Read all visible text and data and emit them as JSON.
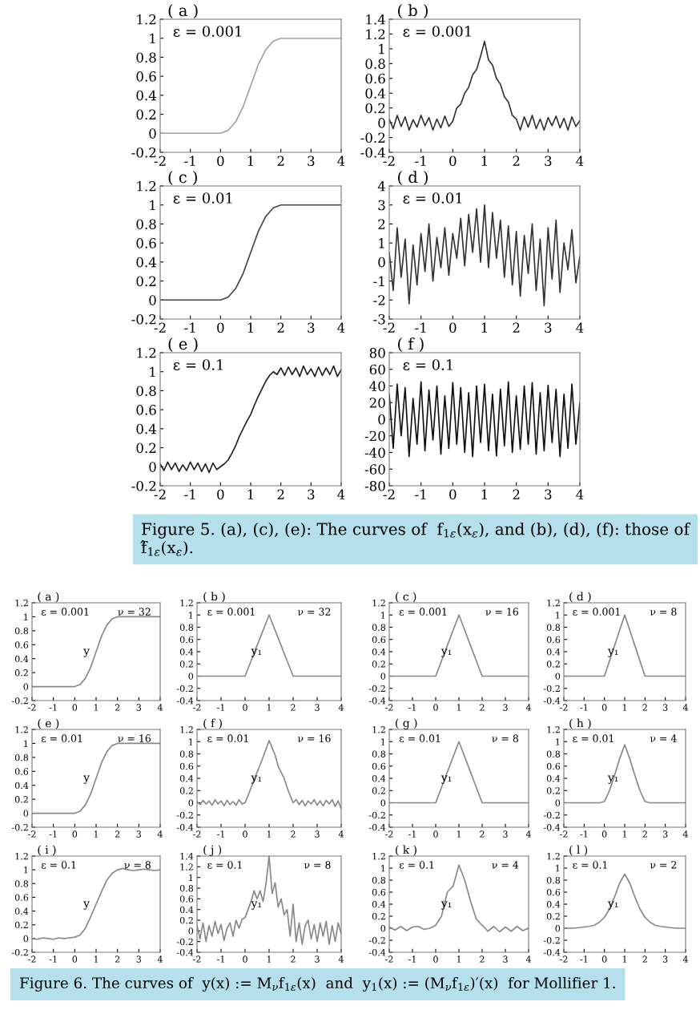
{
  "chart_data": [
    {
      "type": "line",
      "title": "( a )",
      "annotations": [
        "ε = 0.001"
      ],
      "color": "#a0a0a0",
      "x": [
        -2,
        -1.75,
        -1.5,
        -1.25,
        -1,
        -0.75,
        -0.5,
        -0.25,
        0,
        0.25,
        0.5,
        0.75,
        1,
        1.25,
        1.5,
        1.75,
        2,
        2.25,
        2.5,
        2.75,
        3,
        3.25,
        3.5,
        3.75,
        4
      ],
      "values": [
        0,
        0,
        0,
        0,
        0,
        0,
        0,
        0,
        0,
        0.03,
        0.12,
        0.28,
        0.5,
        0.72,
        0.88,
        0.97,
        1,
        1,
        1,
        1,
        1,
        1,
        1,
        1,
        1
      ],
      "xlim": [
        -2,
        4
      ],
      "xticks": [
        -2,
        -1,
        0,
        1,
        2,
        3,
        4
      ],
      "ylim": [
        -0.2,
        1.2
      ],
      "yticks": [
        -0.2,
        0,
        0.2,
        0.4,
        0.6,
        0.8,
        1,
        1.2
      ]
    },
    {
      "type": "line",
      "title": "( b )",
      "annotations": [
        "ε = 0.001"
      ],
      "color": "#333333",
      "x": [
        -2,
        -1.875,
        -1.75,
        -1.625,
        -1.5,
        -1.375,
        -1.25,
        -1.125,
        -1,
        -0.875,
        -0.75,
        -0.625,
        -0.5,
        -0.375,
        -0.25,
        -0.125,
        0,
        0.125,
        0.25,
        0.375,
        0.5,
        0.625,
        0.75,
        0.875,
        1,
        1.125,
        1.25,
        1.375,
        1.5,
        1.625,
        1.75,
        1.875,
        2,
        2.125,
        2.25,
        2.375,
        2.5,
        2.625,
        2.75,
        2.875,
        3,
        3.125,
        3.25,
        3.375,
        3.5,
        3.625,
        3.75,
        3.875,
        4
      ],
      "values": [
        0.05,
        -0.08,
        0.1,
        -0.05,
        0.08,
        -0.1,
        0.04,
        -0.06,
        0.1,
        -0.04,
        0.07,
        -0.1,
        0.05,
        -0.07,
        0.09,
        -0.05,
        0.02,
        0.2,
        0.25,
        0.4,
        0.48,
        0.65,
        0.72,
        0.9,
        1.1,
        0.85,
        0.78,
        0.6,
        0.52,
        0.35,
        0.28,
        0.1,
        0.05,
        -0.1,
        0.08,
        -0.06,
        0.1,
        -0.08,
        0.05,
        -0.1,
        0.07,
        -0.04,
        0.09,
        -0.07,
        0.06,
        -0.1,
        0.08,
        -0.05,
        0.03
      ],
      "xlim": [
        -2,
        4
      ],
      "xticks": [
        -2,
        -1,
        0,
        1,
        2,
        3,
        4
      ],
      "ylim": [
        -0.4,
        1.4
      ],
      "yticks": [
        -0.4,
        -0.2,
        0,
        0.2,
        0.4,
        0.6,
        0.8,
        1,
        1.2,
        1.4
      ]
    },
    {
      "type": "line",
      "title": "( c )",
      "annotations": [
        "ε = 0.01"
      ],
      "color": "#444444",
      "x": [
        -2,
        -1.75,
        -1.5,
        -1.25,
        -1,
        -0.75,
        -0.5,
        -0.25,
        0,
        0.25,
        0.5,
        0.75,
        1,
        1.25,
        1.5,
        1.75,
        2,
        2.25,
        2.5,
        2.75,
        3,
        3.25,
        3.5,
        3.75,
        4
      ],
      "values": [
        0,
        0,
        0,
        0,
        0,
        0,
        0,
        0,
        0,
        0.03,
        0.12,
        0.28,
        0.5,
        0.72,
        0.88,
        0.97,
        1,
        1,
        1,
        1,
        1,
        1,
        1,
        1,
        1
      ],
      "xlim": [
        -2,
        4
      ],
      "xticks": [
        -2,
        -1,
        0,
        1,
        2,
        3,
        4
      ],
      "ylim": [
        -0.2,
        1.2
      ],
      "yticks": [
        -0.2,
        0,
        0.2,
        0.4,
        0.6,
        0.8,
        1,
        1.2
      ]
    },
    {
      "type": "line",
      "title": "( d )",
      "annotations": [
        "ε = 0.01"
      ],
      "color": "#333333",
      "x": [
        -2,
        -1.875,
        -1.75,
        -1.625,
        -1.5,
        -1.375,
        -1.25,
        -1.125,
        -1,
        -0.875,
        -0.75,
        -0.625,
        -0.5,
        -0.375,
        -0.25,
        -0.125,
        0,
        0.125,
        0.25,
        0.375,
        0.5,
        0.625,
        0.75,
        0.875,
        1,
        1.125,
        1.25,
        1.375,
        1.5,
        1.625,
        1.75,
        1.875,
        2,
        2.125,
        2.25,
        2.375,
        2.5,
        2.625,
        2.75,
        2.875,
        3,
        3.125,
        3.25,
        3.375,
        3.5,
        3.625,
        3.75,
        3.875,
        4
      ],
      "values": [
        0.5,
        -1.5,
        1.8,
        -0.8,
        1.2,
        -2.2,
        0.9,
        -1.2,
        1.5,
        -0.5,
        2.0,
        -1.0,
        1.3,
        -0.3,
        1.8,
        -0.7,
        1.5,
        0.2,
        2.3,
        -0.2,
        2.5,
        0.5,
        2.8,
        0.0,
        3.0,
        -0.3,
        2.6,
        0.2,
        2.2,
        -0.8,
        1.9,
        -1.2,
        1.6,
        -1.8,
        1.4,
        -0.6,
        2.0,
        -1.5,
        1.2,
        -2.3,
        1.8,
        -0.9,
        2.2,
        -1.6,
        1.0,
        -0.4,
        1.7,
        -1.1,
        0.3
      ],
      "xlim": [
        -2,
        4
      ],
      "xticks": [
        -2,
        -1,
        0,
        1,
        2,
        3,
        4
      ],
      "ylim": [
        -3,
        4
      ],
      "yticks": [
        -3,
        -2,
        -1,
        0,
        1,
        2,
        3,
        4
      ]
    },
    {
      "type": "line",
      "title": "( e )",
      "annotations": [
        "ε = 0.1"
      ],
      "color": "#222222",
      "x": [
        -2,
        -1.875,
        -1.75,
        -1.625,
        -1.5,
        -1.375,
        -1.25,
        -1.125,
        -1,
        -0.875,
        -0.75,
        -0.625,
        -0.5,
        -0.375,
        -0.25,
        -0.125,
        0,
        0.125,
        0.25,
        0.375,
        0.5,
        0.625,
        0.75,
        0.875,
        1,
        1.125,
        1.25,
        1.375,
        1.5,
        1.625,
        1.75,
        1.875,
        2,
        2.125,
        2.25,
        2.375,
        2.5,
        2.625,
        2.75,
        2.875,
        3,
        3.125,
        3.25,
        3.375,
        3.5,
        3.625,
        3.75,
        3.875,
        4
      ],
      "values": [
        0.03,
        -0.04,
        0.05,
        -0.03,
        0.04,
        -0.05,
        0.02,
        -0.04,
        0.05,
        -0.03,
        0.04,
        -0.05,
        0.03,
        -0.06,
        0.04,
        -0.03,
        0.0,
        0.03,
        0.07,
        0.14,
        0.22,
        0.32,
        0.4,
        0.48,
        0.55,
        0.65,
        0.74,
        0.82,
        0.9,
        0.96,
        1.0,
        0.97,
        1.04,
        0.96,
        1.05,
        0.97,
        1.04,
        0.95,
        1.06,
        0.97,
        1.03,
        0.95,
        1.05,
        0.96,
        1.04,
        0.97,
        1.06,
        0.95,
        1.02
      ],
      "xlim": [
        -2,
        4
      ],
      "xticks": [
        -2,
        -1,
        0,
        1,
        2,
        3,
        4
      ],
      "ylim": [
        -0.2,
        1.2
      ],
      "yticks": [
        -0.2,
        0,
        0.2,
        0.4,
        0.6,
        0.8,
        1,
        1.2
      ]
    },
    {
      "type": "line",
      "title": "( f )",
      "annotations": [
        "ε = 0.1",
        "Figure 5. (a), (c), (e): The curves of  f$_{1ε}$(x$_{ε}$), and (b), (d), (f): those of f̂$_{1ε}$(x$_{ε}$)."
      ],
      "color": "#111111",
      "x": [
        -2,
        -1.875,
        -1.75,
        -1.625,
        -1.5,
        -1.375,
        -1.25,
        -1.125,
        -1,
        -0.875,
        -0.75,
        -0.625,
        -0.5,
        -0.375,
        -0.25,
        -0.125,
        0,
        0.125,
        0.25,
        0.375,
        0.5,
        0.625,
        0.75,
        0.875,
        1,
        1.125,
        1.25,
        1.375,
        1.5,
        1.625,
        1.75,
        1.875,
        2,
        2.125,
        2.25,
        2.375,
        2.5,
        2.625,
        2.75,
        2.875,
        3,
        3.125,
        3.25,
        3.375,
        3.5,
        3.625,
        3.75,
        3.875,
        4
      ],
      "values": [
        30,
        -35,
        42,
        -20,
        38,
        -45,
        25,
        -30,
        45,
        -38,
        35,
        -25,
        40,
        -42,
        28,
        -35,
        44,
        -30,
        38,
        -40,
        32,
        -45,
        40,
        -28,
        42,
        -38,
        30,
        -44,
        36,
        -32,
        45,
        -40,
        28,
        -36,
        40,
        -30,
        44,
        -42,
        32,
        -38,
        41,
        -28,
        36,
        -45,
        30,
        -35,
        42,
        -30,
        20
      ],
      "xlim": [
        -2,
        4
      ],
      "xticks": [
        -2,
        -1,
        0,
        1,
        2,
        3,
        4
      ],
      "ylim": [
        -80,
        80
      ],
      "yticks": [
        -80,
        -60,
        -40,
        -20,
        0,
        20,
        40,
        60,
        80
      ]
    },
    {
      "type": "line",
      "title": "( a )",
      "annotations": [
        "ε = 0.001",
        "ν = 32",
        "y"
      ],
      "color": "#888888",
      "x": [
        -2,
        -1.75,
        -1.5,
        -1.25,
        -1,
        -0.75,
        -0.5,
        -0.25,
        0,
        0.25,
        0.5,
        0.75,
        1,
        1.25,
        1.5,
        1.75,
        2,
        2.25,
        2.5,
        2.75,
        3,
        3.25,
        3.5,
        3.75,
        4
      ],
      "values": [
        0,
        0,
        0,
        0,
        0,
        0,
        0,
        0,
        0,
        0.03,
        0.12,
        0.28,
        0.5,
        0.72,
        0.88,
        0.97,
        1,
        1,
        1,
        1,
        1,
        1,
        1,
        1,
        1
      ],
      "xlim": [
        -2,
        4
      ],
      "xticks": [
        -2,
        -1,
        0,
        1,
        2,
        3,
        4
      ],
      "ylim": [
        -0.2,
        1.2
      ],
      "yticks": [
        -0.2,
        0,
        0.2,
        0.4,
        0.6,
        0.8,
        1,
        1.2
      ]
    },
    {
      "type": "line",
      "title": "( b )",
      "annotations": [
        "ε = 0.001",
        "ν = 32",
        "y₁"
      ],
      "color": "#888888",
      "x": [
        -2,
        -1.75,
        -1.5,
        -1.25,
        -1,
        -0.75,
        -0.5,
        -0.25,
        0,
        0.25,
        0.5,
        0.75,
        1,
        1.25,
        1.5,
        1.75,
        2,
        2.25,
        2.5,
        2.75,
        3,
        3.25,
        3.5,
        3.75,
        4
      ],
      "values": [
        0,
        0,
        0,
        0,
        0,
        0,
        0,
        0,
        0,
        0.25,
        0.5,
        0.75,
        1,
        0.75,
        0.5,
        0.25,
        0,
        0,
        0,
        0,
        0,
        0,
        0,
        0,
        0
      ],
      "xlim": [
        -2,
        4
      ],
      "xticks": [
        -2,
        -1,
        0,
        1,
        2,
        3,
        4
      ],
      "ylim": [
        -0.4,
        1.2
      ],
      "yticks": [
        -0.4,
        -0.2,
        0,
        0.2,
        0.4,
        0.6,
        0.8,
        1,
        1.2
      ]
    },
    {
      "type": "line",
      "title": "( c )",
      "annotations": [
        "ε = 0.001",
        "ν = 16",
        "y₁"
      ],
      "color": "#888888",
      "x": [
        -2,
        -1.75,
        -1.5,
        -1.25,
        -1,
        -0.75,
        -0.5,
        -0.25,
        0,
        0.25,
        0.5,
        0.75,
        1,
        1.25,
        1.5,
        1.75,
        2,
        2.25,
        2.5,
        2.75,
        3,
        3.25,
        3.5,
        3.75,
        4
      ],
      "values": [
        0,
        0,
        0,
        0,
        0,
        0,
        0,
        0,
        0,
        0.25,
        0.5,
        0.75,
        1,
        0.75,
        0.5,
        0.25,
        0,
        0,
        0,
        0,
        0,
        0,
        0,
        0,
        0
      ],
      "xlim": [
        -2,
        4
      ],
      "xticks": [
        -2,
        -1,
        0,
        1,
        2,
        3,
        4
      ],
      "ylim": [
        -0.4,
        1.2
      ],
      "yticks": [
        -0.4,
        -0.2,
        0,
        0.2,
        0.4,
        0.6,
        0.8,
        1,
        1.2
      ]
    },
    {
      "type": "line",
      "title": "( d )",
      "annotations": [
        "ε = 0.001",
        "ν = 8",
        "y₁"
      ],
      "color": "#888888",
      "x": [
        -2,
        -1.75,
        -1.5,
        -1.25,
        -1,
        -0.75,
        -0.5,
        -0.25,
        0,
        0.25,
        0.5,
        0.75,
        1,
        1.25,
        1.5,
        1.75,
        2,
        2.25,
        2.5,
        2.75,
        3,
        3.25,
        3.5,
        3.75,
        4
      ],
      "values": [
        0,
        0,
        0,
        0,
        0,
        0,
        0,
        0,
        0,
        0.25,
        0.5,
        0.75,
        1,
        0.75,
        0.5,
        0.25,
        0,
        0,
        0,
        0,
        0,
        0,
        0,
        0,
        0
      ],
      "xlim": [
        -2,
        4
      ],
      "xticks": [
        -2,
        -1,
        0,
        1,
        2,
        3,
        4
      ],
      "ylim": [
        -0.4,
        1.2
      ],
      "yticks": [
        -0.4,
        -0.2,
        0,
        0.2,
        0.4,
        0.6,
        0.8,
        1,
        1.2
      ]
    },
    {
      "type": "line",
      "title": "( e )",
      "annotations": [
        "ε = 0.01",
        "ν = 16",
        "y"
      ],
      "color": "#888888",
      "x": [
        -2,
        -1.75,
        -1.5,
        -1.25,
        -1,
        -0.75,
        -0.5,
        -0.25,
        0,
        0.25,
        0.5,
        0.75,
        1,
        1.25,
        1.5,
        1.75,
        2,
        2.25,
        2.5,
        2.75,
        3,
        3.25,
        3.5,
        3.75,
        4
      ],
      "values": [
        0,
        0,
        0,
        0,
        0,
        0,
        0,
        0,
        0,
        0.03,
        0.12,
        0.28,
        0.5,
        0.72,
        0.88,
        0.97,
        1,
        1,
        1,
        1,
        1,
        1,
        1,
        1,
        1
      ],
      "xlim": [
        -2,
        4
      ],
      "xticks": [
        -2,
        -1,
        0,
        1,
        2,
        3,
        4
      ],
      "ylim": [
        -0.2,
        1.2
      ],
      "yticks": [
        -0.2,
        0,
        0.2,
        0.4,
        0.6,
        0.8,
        1,
        1.2
      ]
    },
    {
      "type": "line",
      "title": "( f )",
      "annotations": [
        "ε = 0.01",
        "ν = 16",
        "y₁"
      ],
      "color": "#888888",
      "x": [
        -2,
        -1.875,
        -1.75,
        -1.625,
        -1.5,
        -1.375,
        -1.25,
        -1.125,
        -1,
        -0.875,
        -0.75,
        -0.625,
        -0.5,
        -0.375,
        -0.25,
        -0.125,
        0,
        0.125,
        0.25,
        0.375,
        0.5,
        0.625,
        0.75,
        0.875,
        1,
        1.125,
        1.25,
        1.375,
        1.5,
        1.625,
        1.75,
        1.875,
        2,
        2.125,
        2.25,
        2.375,
        2.5,
        2.625,
        2.75,
        2.875,
        3,
        3.125,
        3.25,
        3.375,
        3.5,
        3.625,
        3.75,
        3.875,
        4
      ],
      "values": [
        0.02,
        -0.03,
        0.04,
        -0.02,
        0.03,
        -0.04,
        0.05,
        -0.02,
        0.03,
        -0.05,
        0.04,
        -0.03,
        0.02,
        -0.04,
        0.05,
        -0.02,
        0.0,
        0.12,
        0.25,
        0.38,
        0.5,
        0.62,
        0.75,
        0.88,
        1.02,
        0.9,
        0.78,
        0.6,
        0.5,
        0.4,
        0.25,
        0.12,
        0.0,
        0.05,
        -0.03,
        0.04,
        -0.05,
        0.03,
        -0.02,
        0.05,
        -0.04,
        0.03,
        -0.05,
        0.04,
        -0.02,
        0.05,
        -0.06,
        0.03,
        -0.1
      ],
      "xlim": [
        -2,
        4
      ],
      "xticks": [
        -2,
        -1,
        0,
        1,
        2,
        3,
        4
      ],
      "ylim": [
        -0.4,
        1.2
      ],
      "yticks": [
        -0.4,
        -0.2,
        0,
        0.2,
        0.4,
        0.6,
        0.8,
        1,
        1.2
      ]
    },
    {
      "type": "line",
      "title": "( g )",
      "annotations": [
        "ε = 0.01",
        "ν = 8",
        "y₁"
      ],
      "color": "#888888",
      "x": [
        -2,
        -1.75,
        -1.5,
        -1.25,
        -1,
        -0.75,
        -0.5,
        -0.25,
        0,
        0.25,
        0.5,
        0.75,
        1,
        1.25,
        1.5,
        1.75,
        2,
        2.25,
        2.5,
        2.75,
        3,
        3.25,
        3.5,
        3.75,
        4
      ],
      "values": [
        0,
        0,
        0,
        0,
        0,
        0,
        0,
        0,
        0,
        0.25,
        0.5,
        0.75,
        1,
        0.75,
        0.5,
        0.25,
        0,
        0,
        0,
        0,
        0,
        0,
        0,
        0,
        0
      ],
      "xlim": [
        -2,
        4
      ],
      "xticks": [
        -2,
        -1,
        0,
        1,
        2,
        3,
        4
      ],
      "ylim": [
        -0.4,
        1.2
      ],
      "yticks": [
        -0.4,
        -0.2,
        0,
        0.2,
        0.4,
        0.6,
        0.8,
        1,
        1.2
      ]
    },
    {
      "type": "line",
      "title": "( h )",
      "annotations": [
        "ε = 0.01",
        "ν = 4",
        "y₁"
      ],
      "color": "#888888",
      "x": [
        -2,
        -1.75,
        -1.5,
        -1.25,
        -1,
        -0.75,
        -0.5,
        -0.25,
        0,
        0.25,
        0.5,
        0.75,
        1,
        1.25,
        1.5,
        1.75,
        2,
        2.25,
        2.5,
        2.75,
        3,
        3.25,
        3.5,
        3.75,
        4
      ],
      "values": [
        0,
        0,
        0,
        0,
        0,
        0,
        0,
        0,
        0.02,
        0.2,
        0.45,
        0.72,
        0.95,
        0.72,
        0.45,
        0.2,
        0.02,
        0,
        0,
        0,
        0,
        0,
        0,
        0,
        0
      ],
      "xlim": [
        -2,
        4
      ],
      "xticks": [
        -2,
        -1,
        0,
        1,
        2,
        3,
        4
      ],
      "ylim": [
        -0.4,
        1.2
      ],
      "yticks": [
        -0.4,
        -0.2,
        0,
        0.2,
        0.4,
        0.6,
        0.8,
        1,
        1.2
      ]
    },
    {
      "type": "line",
      "title": "( i )",
      "annotations": [
        "ε = 0.1",
        "ν = 8",
        "y"
      ],
      "color": "#888888",
      "x": [
        -2,
        -1.75,
        -1.5,
        -1.25,
        -1,
        -0.75,
        -0.5,
        -0.25,
        0,
        0.25,
        0.5,
        0.75,
        1,
        1.25,
        1.5,
        1.75,
        2,
        2.25,
        2.5,
        2.75,
        3,
        3.25,
        3.5,
        3.75,
        4
      ],
      "values": [
        0,
        -0.01,
        0.01,
        0,
        -0.01,
        0.01,
        0,
        0.01,
        0.02,
        0.05,
        0.15,
        0.32,
        0.5,
        0.68,
        0.85,
        0.95,
        1.0,
        1.02,
        1.0,
        0.99,
        1.0,
        1.01,
        1.0,
        0.99,
        1.0
      ],
      "xlim": [
        -2,
        4
      ],
      "xticks": [
        -2,
        -1,
        0,
        1,
        2,
        3,
        4
      ],
      "ylim": [
        -0.2,
        1.2
      ],
      "yticks": [
        -0.2,
        0,
        0.2,
        0.4,
        0.6,
        0.8,
        1,
        1.2
      ]
    },
    {
      "type": "line",
      "title": "( j )",
      "annotations": [
        "ε = 0.1",
        "ν = 8",
        "y₁"
      ],
      "color": "#888888",
      "x": [
        -2,
        -1.875,
        -1.75,
        -1.625,
        -1.5,
        -1.375,
        -1.25,
        -1.125,
        -1,
        -0.875,
        -0.75,
        -0.625,
        -0.5,
        -0.375,
        -0.25,
        -0.125,
        0,
        0.125,
        0.25,
        0.375,
        0.5,
        0.625,
        0.75,
        0.875,
        1,
        1.125,
        1.25,
        1.375,
        1.5,
        1.625,
        1.75,
        1.875,
        2,
        2.125,
        2.25,
        2.375,
        2.5,
        2.625,
        2.75,
        2.875,
        3,
        3.125,
        3.25,
        3.375,
        3.5,
        3.625,
        3.75,
        3.875,
        4
      ],
      "values": [
        0.1,
        -0.15,
        0.15,
        -0.2,
        0.1,
        -0.1,
        0.18,
        -0.05,
        0.12,
        -0.18,
        0.05,
        0.15,
        -0.1,
        0.2,
        0.05,
        0.22,
        0.25,
        0.4,
        0.55,
        0.75,
        0.6,
        0.75,
        0.55,
        0.9,
        1.4,
        0.7,
        0.9,
        0.45,
        0.6,
        0.3,
        0.4,
        -0.1,
        0.5,
        -0.2,
        0.15,
        -0.25,
        0.1,
        0.2,
        -0.15,
        0.12,
        -0.2,
        0.15,
        -0.1,
        0.18,
        -0.25,
        0.1,
        -0.2,
        0.15,
        -0.05
      ],
      "xlim": [
        -2,
        4
      ],
      "xticks": [
        -2,
        -1,
        0,
        1,
        2,
        3,
        4
      ],
      "ylim": [
        -0.4,
        1.4
      ],
      "yticks": [
        -0.4,
        -0.2,
        0,
        0.2,
        0.4,
        0.6,
        0.8,
        1,
        1.2,
        1.4
      ]
    },
    {
      "type": "line",
      "title": "( k )",
      "annotations": [
        "ε = 0.1",
        "ν = 4",
        "y₁"
      ],
      "color": "#888888",
      "x": [
        -2,
        -1.75,
        -1.5,
        -1.25,
        -1,
        -0.75,
        -0.5,
        -0.25,
        0,
        0.25,
        0.5,
        0.75,
        1,
        1.25,
        1.5,
        1.75,
        2,
        2.25,
        2.5,
        2.75,
        3,
        3.25,
        3.5,
        3.75,
        4
      ],
      "values": [
        0.02,
        -0.03,
        0.03,
        -0.04,
        0.02,
        0.03,
        -0.02,
        0.0,
        0.05,
        0.2,
        0.6,
        0.7,
        1.05,
        0.8,
        0.45,
        0.15,
        0.05,
        -0.05,
        0.03,
        -0.06,
        0.02,
        -0.05,
        0.03,
        -0.04,
        0.0
      ],
      "xlim": [
        -2,
        4
      ],
      "xticks": [
        -2,
        -1,
        0,
        1,
        2,
        3,
        4
      ],
      "ylim": [
        -0.4,
        1.2
      ],
      "yticks": [
        -0.4,
        -0.2,
        0,
        0.2,
        0.4,
        0.6,
        0.8,
        1,
        1.2
      ]
    },
    {
      "type": "line",
      "title": "( l )",
      "annotations": [
        "ε = 0.1",
        "ν = 2",
        "y₁",
        "Figure 6. The curves of  y(x) := M$_{ν}$f$_{1ε}$(x)  and  y$_{1}$(x) := (M$_{ν}$f$_{1ε}$)′(x)  for Mollifier 1."
      ],
      "color": "#888888",
      "x": [
        -2,
        -1.75,
        -1.5,
        -1.25,
        -1,
        -0.75,
        -0.5,
        -0.25,
        0,
        0.25,
        0.5,
        0.75,
        1,
        1.25,
        1.5,
        1.75,
        2,
        2.25,
        2.5,
        2.75,
        3,
        3.25,
        3.5,
        3.75,
        4
      ],
      "values": [
        0,
        0,
        0,
        0.01,
        0.02,
        0.03,
        0.05,
        0.1,
        0.18,
        0.32,
        0.52,
        0.75,
        0.9,
        0.75,
        0.52,
        0.32,
        0.18,
        0.1,
        0.05,
        0.03,
        0.02,
        0.01,
        0,
        0,
        0
      ],
      "xlim": [
        -2,
        4
      ],
      "xticks": [
        -2,
        -1,
        0,
        1,
        2,
        3,
        4
      ],
      "ylim": [
        -0.4,
        1.2
      ],
      "yticks": [
        -0.4,
        -0.2,
        0,
        0.2,
        0.4,
        0.6,
        0.8,
        1,
        1.2
      ]
    }
  ]
}
